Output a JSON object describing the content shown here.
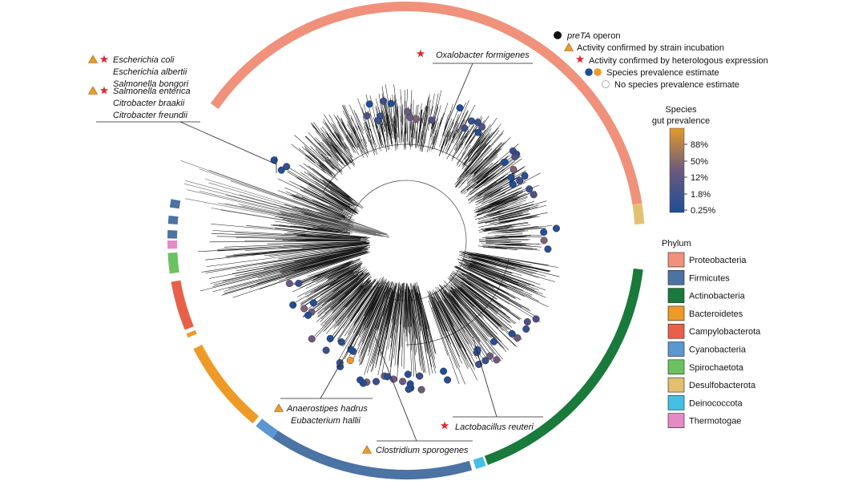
{
  "legend_markers": {
    "operon": {
      "label_italic": "preTA",
      "label_rest": " operon",
      "icon": "black-circle"
    },
    "strain": {
      "label": "Activity confirmed by strain incubation",
      "icon": "orange-triangle"
    },
    "hetero": {
      "label": "Activity confirmed by heterologous expression",
      "icon": "red-star"
    },
    "prevalence": {
      "label": "Species prevalence estimate",
      "icon": "blue-orange-circles"
    },
    "no_prevalence": {
      "label": "No species prevalence estimate",
      "icon": "open-circle"
    }
  },
  "colorbar": {
    "title_line1": "Species",
    "title_line2": "gut prevalence",
    "ticks": [
      "88%",
      "50%",
      "12%",
      "1.8%",
      "0.25%"
    ],
    "low_color": "#1f4e96",
    "mid_color": "#6b5a7e",
    "high_color": "#e39a2c"
  },
  "phylum_legend": {
    "title": "Phylum",
    "items": [
      {
        "label": "Proteobacteria",
        "color": "#f0917b"
      },
      {
        "label": "Firmicutes",
        "color": "#4b73a3"
      },
      {
        "label": "Actinobacteria",
        "color": "#197a3b"
      },
      {
        "label": "Bacteroidetes",
        "color": "#ee9a26"
      },
      {
        "label": "Campylobacterota",
        "color": "#e8604a"
      },
      {
        "label": "Cyanobacteria",
        "color": "#5b97d1"
      },
      {
        "label": "Spirochaetota",
        "color": "#6cc161"
      },
      {
        "label": "Desulfobacterota",
        "color": "#e2c06f"
      },
      {
        "label": "Deinococcota",
        "color": "#43c0e3"
      },
      {
        "label": "Thermotogae",
        "color": "#e58ac4"
      }
    ]
  },
  "species_labels": {
    "enterics": [
      "Escherichia coli",
      "Escherichia albertii",
      "Salmonella bongori",
      "Salmonella enterica",
      "Citrobacter braakii",
      "Citrobacter freundii"
    ],
    "oxalobacter": "Oxalobacter formigenes",
    "anaerostipes": "Anaerostipes hadrus",
    "eubacterium": "Eubacterium hallii",
    "clostridium": "Clostridium sporogenes",
    "lactobacillus": "Lactobacillus reuteri"
  }
}
